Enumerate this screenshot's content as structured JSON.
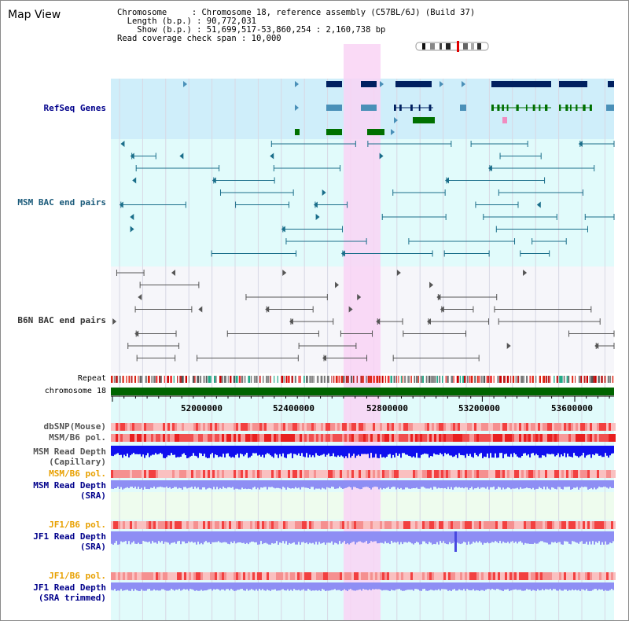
{
  "header": {
    "title": "Map View",
    "info_lines": [
      "Chromosome     : Chromosome 18, reference assembly (C57BL/6J) (Build 37)",
      "  Length (b.p.) : 90,772,031",
      "    Show (b.p.) : 51,699,517-53,860,254 : 2,160,738 bp",
      "Read coverage check span : 10,000"
    ]
  },
  "tracks": {
    "refseq": "RefSeq Genes",
    "msm_bac": "MSM BAC end pairs",
    "b6n_bac": "B6N BAC end pairs",
    "repeat": "Repeat",
    "chromosome": "chromosome 18",
    "dbsnp": "dbSNP(Mouse)",
    "msm_b6_pol_1": "MSM/B6 pol.",
    "msm_read_depth_cap_1": "MSM Read Depth",
    "msm_read_depth_cap_2": "(Capillary)",
    "msm_b6_pol_2": "MSM/B6 pol.",
    "msm_read_depth_sra_1": "MSM Read Depth",
    "msm_read_depth_sra_2": "(SRA)",
    "jf1_b6_pol_1": "JF1/B6 pol.",
    "jf1_read_depth_sra_1": "JF1 Read Depth",
    "jf1_read_depth_sra_2": "(SRA)",
    "jf1_b6_pol_2": "JF1/B6 pol.",
    "jf1_read_depth_trim_1": "JF1 Read Depth",
    "jf1_read_depth_trim_2": "(SRA trimmed)"
  },
  "axis": {
    "ticks": [
      "52000000",
      "52400000",
      "52800000",
      "53200000",
      "53600000"
    ]
  },
  "colors": {
    "refseq_label": "#00008b",
    "msm_label": "#1a5a7a",
    "b6n_label": "#333333",
    "orange_label": "#e8a000",
    "blue_label": "#00008b",
    "highlight": "#f9d4f4",
    "chromosome_bar": "#006400",
    "refseq_bg": "#cfeefa",
    "msm_bg": "#e1fbfb",
    "gene_dark": "#002060",
    "gene_mid": "#4a90b8",
    "gene_green": "#007000",
    "msm_line": "#1a6e8a",
    "b6n_line": "#555555",
    "depth_blue": "#1010ee",
    "depth_lavender": "#8e8ef4"
  }
}
